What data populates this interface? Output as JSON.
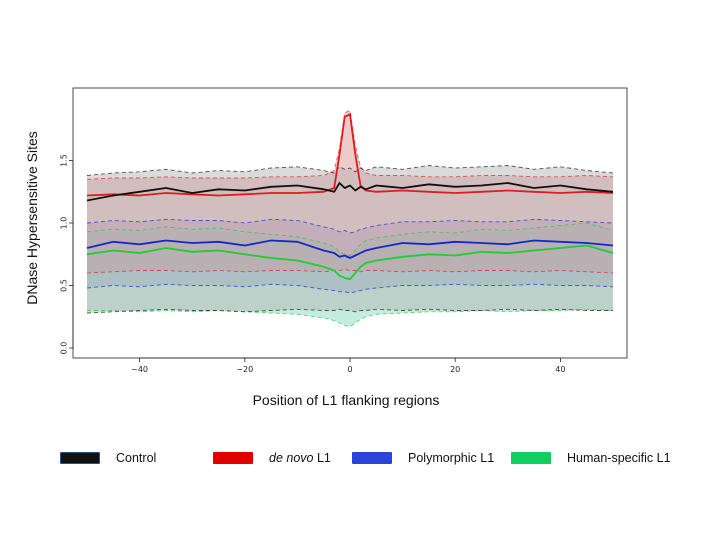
{
  "chart_data": {
    "type": "line",
    "title": "",
    "xlabel": "Position of L1 flanking regions",
    "ylabel": "DNase Hypersensitive Sites",
    "xlim": [
      -50,
      50
    ],
    "ylim": [
      0,
      2.0
    ],
    "xticks": [
      -40,
      -20,
      0,
      20,
      40
    ],
    "xtick_labels": [
      "−40",
      "−20",
      "0",
      "20",
      "40"
    ],
    "yticks": [
      0.0,
      0.5,
      1.0,
      1.5
    ],
    "ytick_labels": [
      "0.0",
      "0.5",
      "1.0",
      "1.5"
    ],
    "grid": false,
    "legend_position": "bottom",
    "x": [
      -50,
      -45,
      -40,
      -35,
      -30,
      -25,
      -20,
      -15,
      -10,
      -5,
      -3,
      -2,
      -1,
      0,
      1,
      2,
      3,
      5,
      10,
      15,
      20,
      25,
      30,
      35,
      40,
      45,
      50
    ],
    "series": [
      {
        "name": "Control",
        "color": "#111111",
        "fill": "#b0b0b0",
        "values": [
          1.18,
          1.22,
          1.25,
          1.28,
          1.24,
          1.27,
          1.26,
          1.29,
          1.3,
          1.27,
          1.25,
          1.32,
          1.28,
          1.3,
          1.26,
          1.29,
          1.27,
          1.3,
          1.28,
          1.31,
          1.29,
          1.3,
          1.32,
          1.28,
          1.3,
          1.27,
          1.25
        ],
        "upper": [
          1.38,
          1.4,
          1.41,
          1.43,
          1.4,
          1.42,
          1.41,
          1.44,
          1.45,
          1.42,
          1.4,
          1.45,
          1.43,
          1.44,
          1.41,
          1.44,
          1.42,
          1.45,
          1.43,
          1.46,
          1.44,
          1.45,
          1.46,
          1.43,
          1.45,
          1.42,
          1.4
        ],
        "lower": [
          0.28,
          0.29,
          0.3,
          0.31,
          0.3,
          0.3,
          0.29,
          0.3,
          0.31,
          0.3,
          0.3,
          0.31,
          0.3,
          0.3,
          0.29,
          0.3,
          0.3,
          0.31,
          0.3,
          0.31,
          0.3,
          0.3,
          0.31,
          0.3,
          0.31,
          0.3,
          0.3
        ]
      },
      {
        "name": "de novo L1",
        "color": "#dd1e1e",
        "fill": "#d98c8c",
        "values": [
          1.22,
          1.23,
          1.22,
          1.24,
          1.23,
          1.22,
          1.23,
          1.24,
          1.24,
          1.25,
          1.28,
          1.55,
          1.85,
          1.87,
          1.55,
          1.3,
          1.26,
          1.25,
          1.26,
          1.25,
          1.24,
          1.25,
          1.26,
          1.25,
          1.24,
          1.25,
          1.24
        ],
        "upper": [
          1.35,
          1.36,
          1.36,
          1.37,
          1.36,
          1.36,
          1.36,
          1.37,
          1.37,
          1.38,
          1.42,
          1.6,
          1.88,
          1.9,
          1.62,
          1.45,
          1.4,
          1.38,
          1.38,
          1.37,
          1.37,
          1.38,
          1.38,
          1.37,
          1.37,
          1.38,
          1.37
        ],
        "lower": [
          0.6,
          0.61,
          0.62,
          0.62,
          0.61,
          0.62,
          0.61,
          0.62,
          0.62,
          0.61,
          0.62,
          0.62,
          0.63,
          0.62,
          0.62,
          0.61,
          0.62,
          0.62,
          0.61,
          0.62,
          0.61,
          0.62,
          0.62,
          0.61,
          0.62,
          0.61,
          0.6
        ]
      },
      {
        "name": "Polymorphic L1",
        "color": "#1428c8",
        "fill": "#9a87d6",
        "values": [
          0.8,
          0.85,
          0.83,
          0.86,
          0.84,
          0.85,
          0.82,
          0.86,
          0.85,
          0.78,
          0.76,
          0.73,
          0.74,
          0.72,
          0.74,
          0.76,
          0.78,
          0.8,
          0.84,
          0.83,
          0.85,
          0.84,
          0.83,
          0.86,
          0.85,
          0.84,
          0.82
        ],
        "upper": [
          1.0,
          1.02,
          1.01,
          1.03,
          1.02,
          1.02,
          1.0,
          1.03,
          1.02,
          0.97,
          0.95,
          0.93,
          0.94,
          0.92,
          0.93,
          0.95,
          0.96,
          0.98,
          1.01,
          1.01,
          1.02,
          1.01,
          1.01,
          1.03,
          1.02,
          1.01,
          1.0
        ],
        "lower": [
          0.48,
          0.5,
          0.49,
          0.51,
          0.5,
          0.5,
          0.49,
          0.51,
          0.5,
          0.47,
          0.46,
          0.45,
          0.45,
          0.44,
          0.45,
          0.46,
          0.47,
          0.48,
          0.5,
          0.5,
          0.51,
          0.5,
          0.5,
          0.51,
          0.5,
          0.5,
          0.49
        ]
      },
      {
        "name": "Human-specific L1",
        "color": "#22cc33",
        "fill": "#7fd6b8",
        "values": [
          0.75,
          0.78,
          0.76,
          0.8,
          0.77,
          0.78,
          0.75,
          0.72,
          0.7,
          0.65,
          0.62,
          0.58,
          0.56,
          0.55,
          0.6,
          0.65,
          0.68,
          0.7,
          0.73,
          0.75,
          0.74,
          0.77,
          0.76,
          0.78,
          0.8,
          0.82,
          0.76
        ],
        "upper": [
          0.93,
          0.95,
          0.94,
          0.97,
          0.95,
          0.96,
          0.93,
          0.91,
          0.89,
          0.84,
          0.81,
          0.77,
          0.75,
          0.74,
          0.78,
          0.83,
          0.86,
          0.88,
          0.91,
          0.93,
          0.92,
          0.95,
          0.94,
          0.96,
          0.98,
          1.0,
          0.94
        ],
        "lower": [
          0.3,
          0.3,
          0.29,
          0.3,
          0.29,
          0.3,
          0.29,
          0.28,
          0.27,
          0.24,
          0.22,
          0.2,
          0.18,
          0.17,
          0.2,
          0.23,
          0.25,
          0.27,
          0.28,
          0.29,
          0.29,
          0.3,
          0.29,
          0.3,
          0.3,
          0.31,
          0.3
        ]
      }
    ]
  },
  "legend": [
    {
      "label_prefix": "",
      "label_italic": "",
      "label_suffix": "Control",
      "color": "#111111",
      "border": "#2b4f8a"
    },
    {
      "label_prefix": "",
      "label_italic": "de novo",
      "label_suffix": " L1",
      "color": "#e00000",
      "border": "#e00000"
    },
    {
      "label_prefix": "",
      "label_italic": "",
      "label_suffix": "Polymorphic L1",
      "color": "#2a44d8",
      "border": "#2a44d8"
    },
    {
      "label_prefix": "",
      "label_italic": "",
      "label_suffix": "Human-specific L1",
      "color": "#0ecf5f",
      "border": "#0ecf5f"
    }
  ]
}
